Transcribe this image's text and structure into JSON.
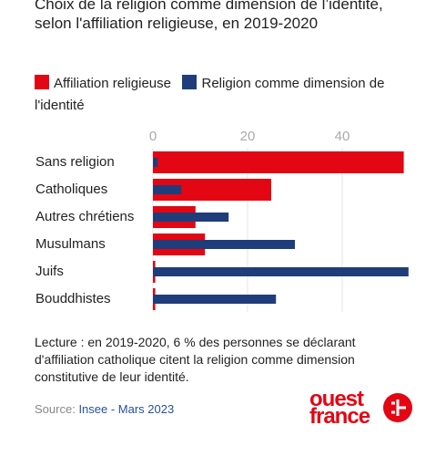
{
  "chart_data": {
    "type": "bar",
    "title": "Choix de la religion comme dimension de l’identité, selon l'affiliation religieuse, en 2019-2020",
    "categories": [
      "Sans religion",
      "Catholiques",
      "Autres chrétiens",
      "Musulmans",
      "Juifs",
      "Bouddhistes"
    ],
    "series": [
      {
        "name": "Affiliation religieuse",
        "color": "#e30613",
        "values": [
          53,
          25,
          9,
          11,
          0.5,
          0.5
        ]
      },
      {
        "name": "Religion comme dimension de l'identité",
        "color": "#1f3d7a",
        "values": [
          1,
          6,
          16,
          30,
          54,
          26
        ]
      }
    ],
    "xlim": [
      0,
      55
    ],
    "xticks": [
      0,
      20,
      40
    ],
    "grid": true,
    "note": "Lecture : en 2019-2020, 6 % des personnes se déclarant d'affiliation catholique citent la religion comme dimension constitutive de leur identité.",
    "source_label": "Source:",
    "source": "Insee - Mars 2023",
    "logo": {
      "line1": "ouest",
      "line2": "france"
    }
  }
}
